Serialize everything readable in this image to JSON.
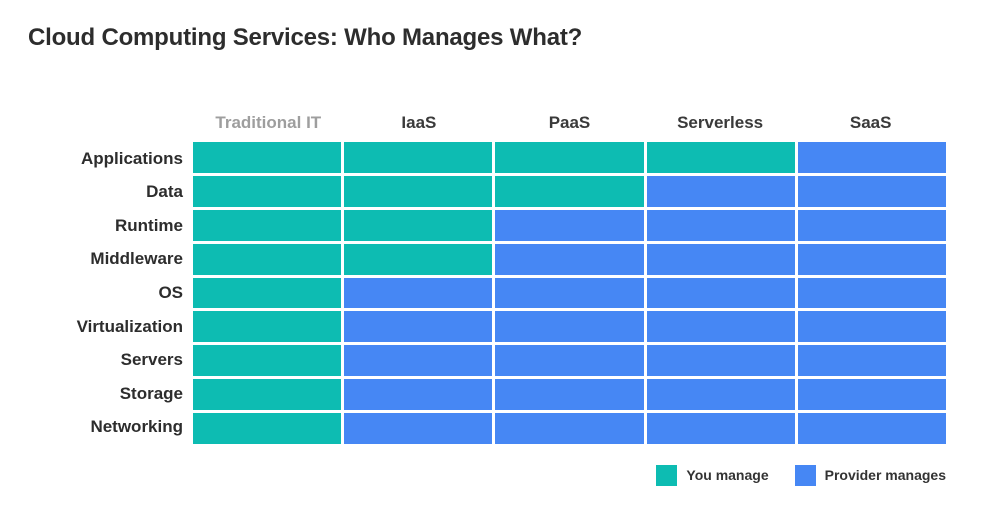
{
  "title": "Cloud Computing Services: Who Manages What?",
  "chart_data": {
    "type": "heatmap",
    "title": "Cloud Computing Services: Who Manages What?",
    "columns": [
      "Traditional IT",
      "IaaS",
      "PaaS",
      "Serverless",
      "SaaS"
    ],
    "muted_column": "Traditional IT",
    "rows": [
      "Applications",
      "Data",
      "Runtime",
      "Middleware",
      "OS",
      "Virtualization",
      "Servers",
      "Storage",
      "Networking"
    ],
    "matrix": [
      [
        "you",
        "you",
        "you",
        "you",
        "provider"
      ],
      [
        "you",
        "you",
        "you",
        "provider",
        "provider"
      ],
      [
        "you",
        "you",
        "provider",
        "provider",
        "provider"
      ],
      [
        "you",
        "you",
        "provider",
        "provider",
        "provider"
      ],
      [
        "you",
        "provider",
        "provider",
        "provider",
        "provider"
      ],
      [
        "you",
        "provider",
        "provider",
        "provider",
        "provider"
      ],
      [
        "you",
        "provider",
        "provider",
        "provider",
        "provider"
      ],
      [
        "you",
        "provider",
        "provider",
        "provider",
        "provider"
      ],
      [
        "you",
        "provider",
        "provider",
        "provider",
        "provider"
      ]
    ],
    "legend": [
      {
        "key": "you",
        "label": "You manage",
        "color": "#0dbcb2"
      },
      {
        "key": "provider",
        "label": "Provider manages",
        "color": "#4687f4"
      }
    ],
    "legend_position": "bottom-right",
    "grid": "white-gaps"
  },
  "colors": {
    "you_manage": "#0dbcb2",
    "provider_manages": "#4687f4",
    "title_text": "#2d2d2d",
    "header_text": "#3a3a3a",
    "muted_header_text": "#9e9e9e",
    "background": "#ffffff"
  }
}
